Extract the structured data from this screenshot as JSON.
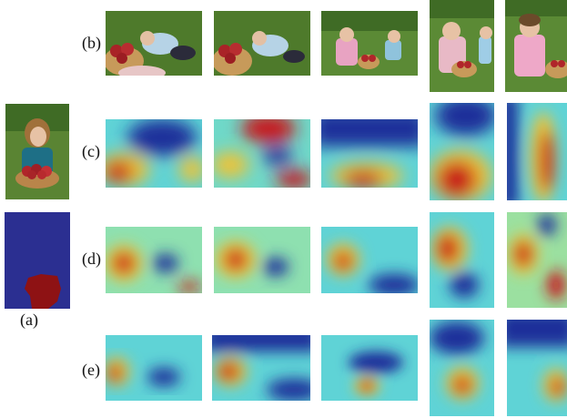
{
  "labels": {
    "a": "(a)",
    "b": "(b)",
    "c": "(c)",
    "d": "(d)",
    "e": "(e)"
  },
  "colors": {
    "mask_background": "#2b2f91",
    "mask_object": "#8e1214",
    "heat_low": "#1d2f9a",
    "heat_mid": "#5fd3d6",
    "heat_high": "#c7151b",
    "grass": "#4f7a2c"
  },
  "rows": {
    "b": [
      "photo-1",
      "photo-2",
      "photo-3",
      "photo-4",
      "photo-5"
    ],
    "c": [
      "heatmap-1",
      "heatmap-2",
      "heatmap-3",
      "heatmap-4",
      "heatmap-5"
    ],
    "d": [
      "heatmap-1",
      "heatmap-2",
      "heatmap-3",
      "heatmap-4",
      "heatmap-5"
    ],
    "e": [
      "heatmap-1",
      "heatmap-2",
      "heatmap-3",
      "heatmap-4",
      "heatmap-5"
    ]
  }
}
